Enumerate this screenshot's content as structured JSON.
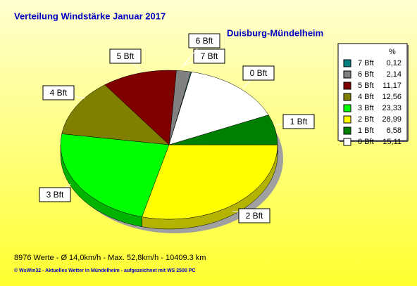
{
  "chart_data": {
    "type": "pie",
    "title": "Verteilung Windstärke  Januar 2017",
    "subtitle": "Duisburg-Mündelheim",
    "legend_header": "%",
    "categories": [
      "7 Bft",
      "6 Bft",
      "5 Bft",
      "4 Bft",
      "3 Bft",
      "2 Bft",
      "1 Bft",
      "0 Bft"
    ],
    "values": [
      0.12,
      2.14,
      11.17,
      12.56,
      23.33,
      28.99,
      6.58,
      15.11
    ],
    "value_labels": [
      "0,12",
      "2,14",
      "11,17",
      "12,56",
      "23,33",
      "28,99",
      "6,58",
      "15,11"
    ],
    "colors": [
      "#008080",
      "#808080",
      "#800000",
      "#808000",
      "#00ff00",
      "#ffff00",
      "#008000",
      "#ffffff"
    ],
    "footer": "8976 Werte   -   Ø 14,0km/h   -  Max. 52,8km/h   -   10409.3 km",
    "credit": "© WsWin32  -  Aktuelles Wetter in Mündelheim  -  aufgezeichnet mit WS 2500 PC"
  }
}
